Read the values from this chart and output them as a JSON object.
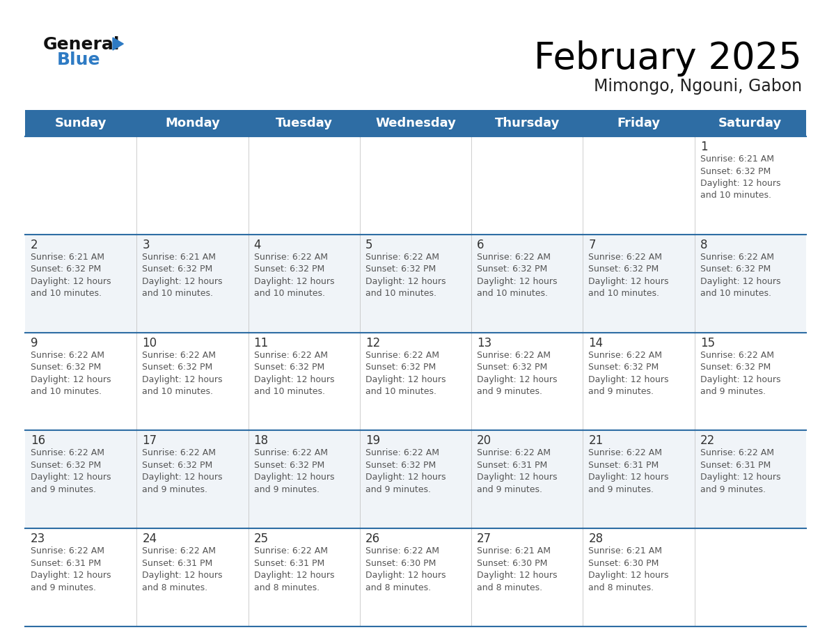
{
  "title": "February 2025",
  "subtitle": "Mimongo, Ngouni, Gabon",
  "header_bg": "#2E6DA4",
  "header_text_color": "#FFFFFF",
  "days_of_week": [
    "Sunday",
    "Monday",
    "Tuesday",
    "Wednesday",
    "Thursday",
    "Friday",
    "Saturday"
  ],
  "cell_bg_normal": "#FFFFFF",
  "cell_bg_alt": "#F0F4F8",
  "grid_line_color": "#2E6DA4",
  "day_num_color": "#333333",
  "text_color": "#555555",
  "calendar": [
    [
      {
        "day": null,
        "info": null
      },
      {
        "day": null,
        "info": null
      },
      {
        "day": null,
        "info": null
      },
      {
        "day": null,
        "info": null
      },
      {
        "day": null,
        "info": null
      },
      {
        "day": null,
        "info": null
      },
      {
        "day": 1,
        "info": "Sunrise: 6:21 AM\nSunset: 6:32 PM\nDaylight: 12 hours\nand 10 minutes."
      }
    ],
    [
      {
        "day": 2,
        "info": "Sunrise: 6:21 AM\nSunset: 6:32 PM\nDaylight: 12 hours\nand 10 minutes."
      },
      {
        "day": 3,
        "info": "Sunrise: 6:21 AM\nSunset: 6:32 PM\nDaylight: 12 hours\nand 10 minutes."
      },
      {
        "day": 4,
        "info": "Sunrise: 6:22 AM\nSunset: 6:32 PM\nDaylight: 12 hours\nand 10 minutes."
      },
      {
        "day": 5,
        "info": "Sunrise: 6:22 AM\nSunset: 6:32 PM\nDaylight: 12 hours\nand 10 minutes."
      },
      {
        "day": 6,
        "info": "Sunrise: 6:22 AM\nSunset: 6:32 PM\nDaylight: 12 hours\nand 10 minutes."
      },
      {
        "day": 7,
        "info": "Sunrise: 6:22 AM\nSunset: 6:32 PM\nDaylight: 12 hours\nand 10 minutes."
      },
      {
        "day": 8,
        "info": "Sunrise: 6:22 AM\nSunset: 6:32 PM\nDaylight: 12 hours\nand 10 minutes."
      }
    ],
    [
      {
        "day": 9,
        "info": "Sunrise: 6:22 AM\nSunset: 6:32 PM\nDaylight: 12 hours\nand 10 minutes."
      },
      {
        "day": 10,
        "info": "Sunrise: 6:22 AM\nSunset: 6:32 PM\nDaylight: 12 hours\nand 10 minutes."
      },
      {
        "day": 11,
        "info": "Sunrise: 6:22 AM\nSunset: 6:32 PM\nDaylight: 12 hours\nand 10 minutes."
      },
      {
        "day": 12,
        "info": "Sunrise: 6:22 AM\nSunset: 6:32 PM\nDaylight: 12 hours\nand 10 minutes."
      },
      {
        "day": 13,
        "info": "Sunrise: 6:22 AM\nSunset: 6:32 PM\nDaylight: 12 hours\nand 9 minutes."
      },
      {
        "day": 14,
        "info": "Sunrise: 6:22 AM\nSunset: 6:32 PM\nDaylight: 12 hours\nand 9 minutes."
      },
      {
        "day": 15,
        "info": "Sunrise: 6:22 AM\nSunset: 6:32 PM\nDaylight: 12 hours\nand 9 minutes."
      }
    ],
    [
      {
        "day": 16,
        "info": "Sunrise: 6:22 AM\nSunset: 6:32 PM\nDaylight: 12 hours\nand 9 minutes."
      },
      {
        "day": 17,
        "info": "Sunrise: 6:22 AM\nSunset: 6:32 PM\nDaylight: 12 hours\nand 9 minutes."
      },
      {
        "day": 18,
        "info": "Sunrise: 6:22 AM\nSunset: 6:32 PM\nDaylight: 12 hours\nand 9 minutes."
      },
      {
        "day": 19,
        "info": "Sunrise: 6:22 AM\nSunset: 6:32 PM\nDaylight: 12 hours\nand 9 minutes."
      },
      {
        "day": 20,
        "info": "Sunrise: 6:22 AM\nSunset: 6:31 PM\nDaylight: 12 hours\nand 9 minutes."
      },
      {
        "day": 21,
        "info": "Sunrise: 6:22 AM\nSunset: 6:31 PM\nDaylight: 12 hours\nand 9 minutes."
      },
      {
        "day": 22,
        "info": "Sunrise: 6:22 AM\nSunset: 6:31 PM\nDaylight: 12 hours\nand 9 minutes."
      }
    ],
    [
      {
        "day": 23,
        "info": "Sunrise: 6:22 AM\nSunset: 6:31 PM\nDaylight: 12 hours\nand 9 minutes."
      },
      {
        "day": 24,
        "info": "Sunrise: 6:22 AM\nSunset: 6:31 PM\nDaylight: 12 hours\nand 8 minutes."
      },
      {
        "day": 25,
        "info": "Sunrise: 6:22 AM\nSunset: 6:31 PM\nDaylight: 12 hours\nand 8 minutes."
      },
      {
        "day": 26,
        "info": "Sunrise: 6:22 AM\nSunset: 6:30 PM\nDaylight: 12 hours\nand 8 minutes."
      },
      {
        "day": 27,
        "info": "Sunrise: 6:21 AM\nSunset: 6:30 PM\nDaylight: 12 hours\nand 8 minutes."
      },
      {
        "day": 28,
        "info": "Sunrise: 6:21 AM\nSunset: 6:30 PM\nDaylight: 12 hours\nand 8 minutes."
      },
      {
        "day": null,
        "info": null
      }
    ]
  ],
  "logo_general_color": "#111111",
  "logo_blue_color": "#2E7BC4",
  "logo_triangle_color": "#2E7BC4",
  "title_fontsize": 38,
  "subtitle_fontsize": 17,
  "header_fontsize": 13,
  "day_num_fontsize": 12,
  "info_fontsize": 9
}
